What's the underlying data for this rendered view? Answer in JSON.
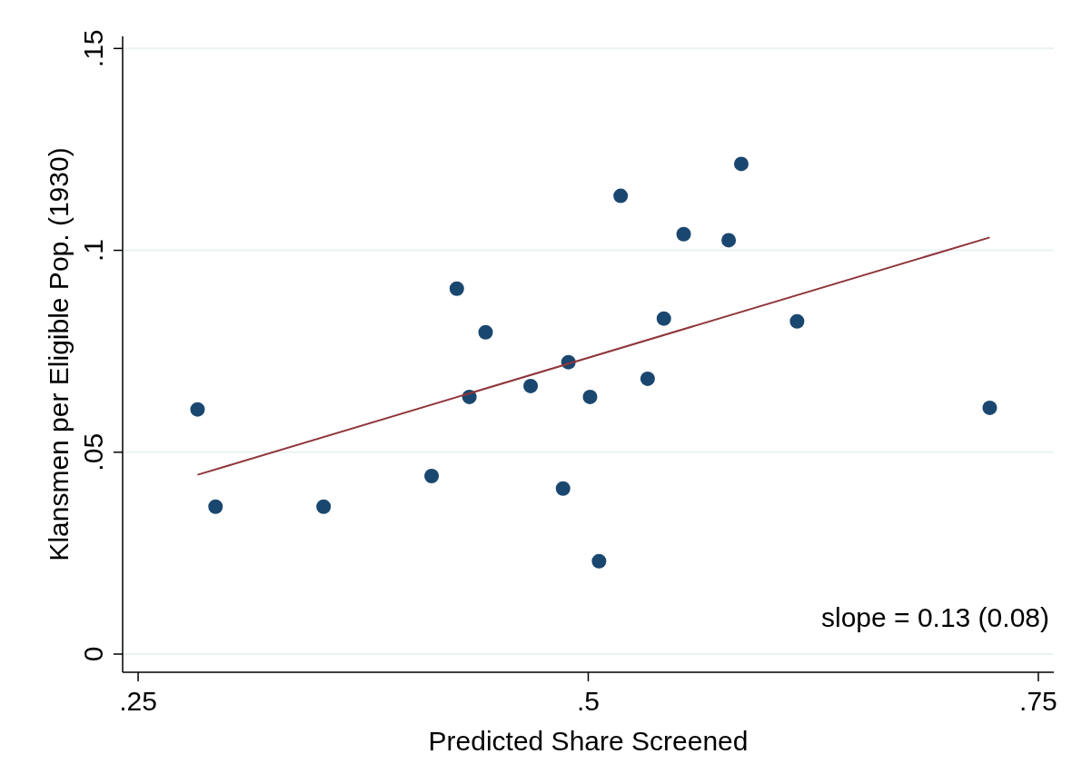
{
  "chart_data": {
    "type": "scatter",
    "xlabel": "Predicted Share Screened",
    "ylabel": "Klansmen per Eligible Pop. (1930)",
    "xlim": [
      0.2414,
      0.7586
    ],
    "ylim": [
      -0.0045,
      0.153
    ],
    "xticks": [
      {
        "value": 0.25,
        "label": ".25"
      },
      {
        "value": 0.5,
        "label": ".5"
      },
      {
        "value": 0.75,
        "label": ".75"
      }
    ],
    "yticks": [
      0,
      {
        "value": 0.05,
        "label": ".05"
      },
      {
        "value": 0.1,
        "label": ".1"
      },
      {
        "value": 0.15,
        "label": ".15"
      }
    ],
    "grid": "y",
    "marker": "circle",
    "series": [
      {
        "color": "#1a476f",
        "x": [
          0.283,
          0.293,
          0.353,
          0.413,
          0.427,
          0.434,
          0.443,
          0.468,
          0.486,
          0.489,
          0.501,
          0.506,
          0.518,
          0.533,
          0.542,
          0.553,
          0.578,
          0.585,
          0.616,
          0.723
        ],
        "values": [
          0.0606,
          0.0365,
          0.0365,
          0.0441,
          0.0905,
          0.0637,
          0.0797,
          0.0664,
          0.041,
          0.0723,
          0.0637,
          0.023,
          0.1135,
          0.0682,
          0.0831,
          0.104,
          0.1025,
          0.1214,
          0.0824,
          0.061
        ]
      },
      {
        "type": "line",
        "marker": "none",
        "color": "#90353b",
        "x": [
          0.283,
          0.723
        ],
        "values": [
          0.0444,
          0.1032
        ]
      }
    ],
    "annotations": [
      "slope = 0.13 (0.08)"
    ]
  }
}
